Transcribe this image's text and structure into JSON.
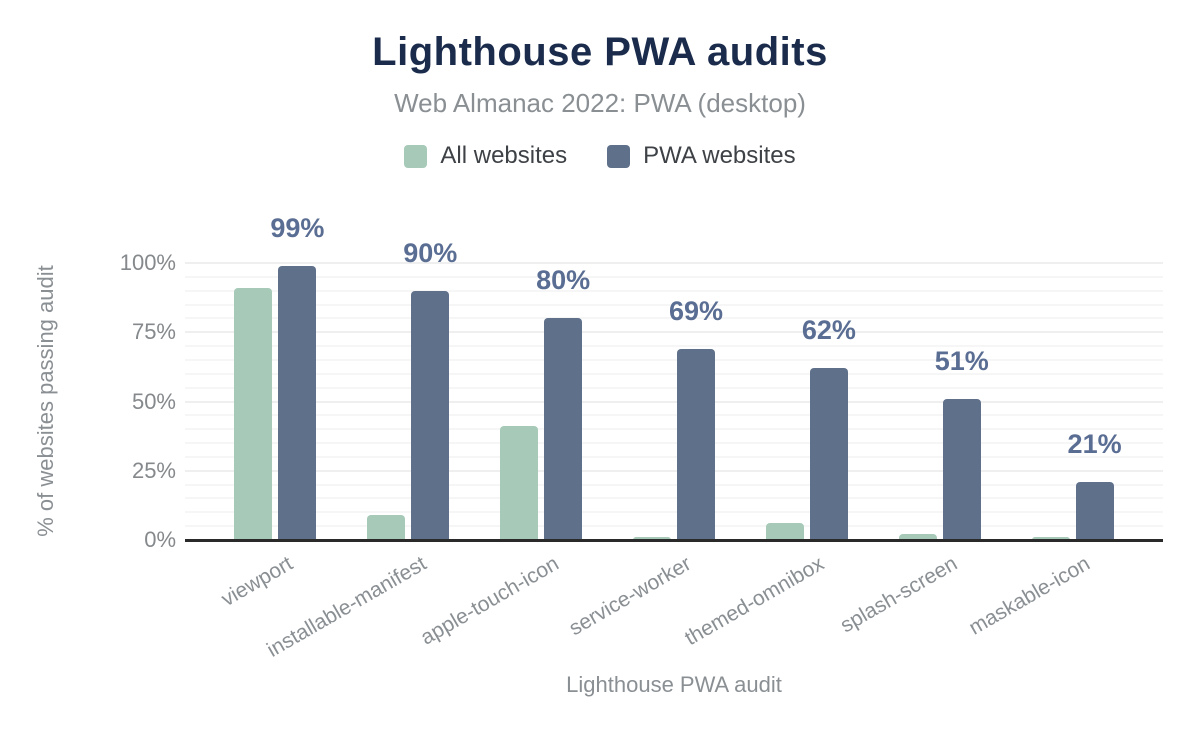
{
  "chart_data": {
    "type": "bar",
    "title": "Lighthouse PWA audits",
    "subtitle": "Web Almanac 2022: PWA (desktop)",
    "xlabel": "Lighthouse PWA audit",
    "ylabel": "% of websites passing audit",
    "categories": [
      "viewport",
      "installable-manifest",
      "apple-touch-icon",
      "service-worker",
      "themed-omnibox",
      "splash-screen",
      "maskable-icon"
    ],
    "series": [
      {
        "name": "All websites",
        "color": "#a6c9b8",
        "values": [
          91,
          9,
          41,
          1,
          6,
          2,
          1
        ],
        "show_labels": false
      },
      {
        "name": "PWA websites",
        "color": "#5f708a",
        "values": [
          99,
          90,
          80,
          69,
          62,
          51,
          21
        ],
        "show_labels": true
      }
    ],
    "data_labels": [
      "99%",
      "90%",
      "80%",
      "69%",
      "62%",
      "51%",
      "21%"
    ],
    "yticks": [
      {
        "value": 0,
        "label": "0%"
      },
      {
        "value": 25,
        "label": "25%"
      },
      {
        "value": 50,
        "label": "50%"
      },
      {
        "value": 75,
        "label": "75%"
      },
      {
        "value": 100,
        "label": "100%"
      }
    ],
    "ylim": [
      0,
      100
    ],
    "grid": {
      "minor_step": 5,
      "major_step": 25,
      "minor_color": "#f6f6f6",
      "major_color": "#efefef"
    },
    "legend_position": "top",
    "colors": {
      "title": "#1a2b4c",
      "subtitle": "#8a8f93",
      "data_label": "#5a6d93",
      "axis_text": "#85898c",
      "baseline": "#2a2a2a"
    }
  }
}
